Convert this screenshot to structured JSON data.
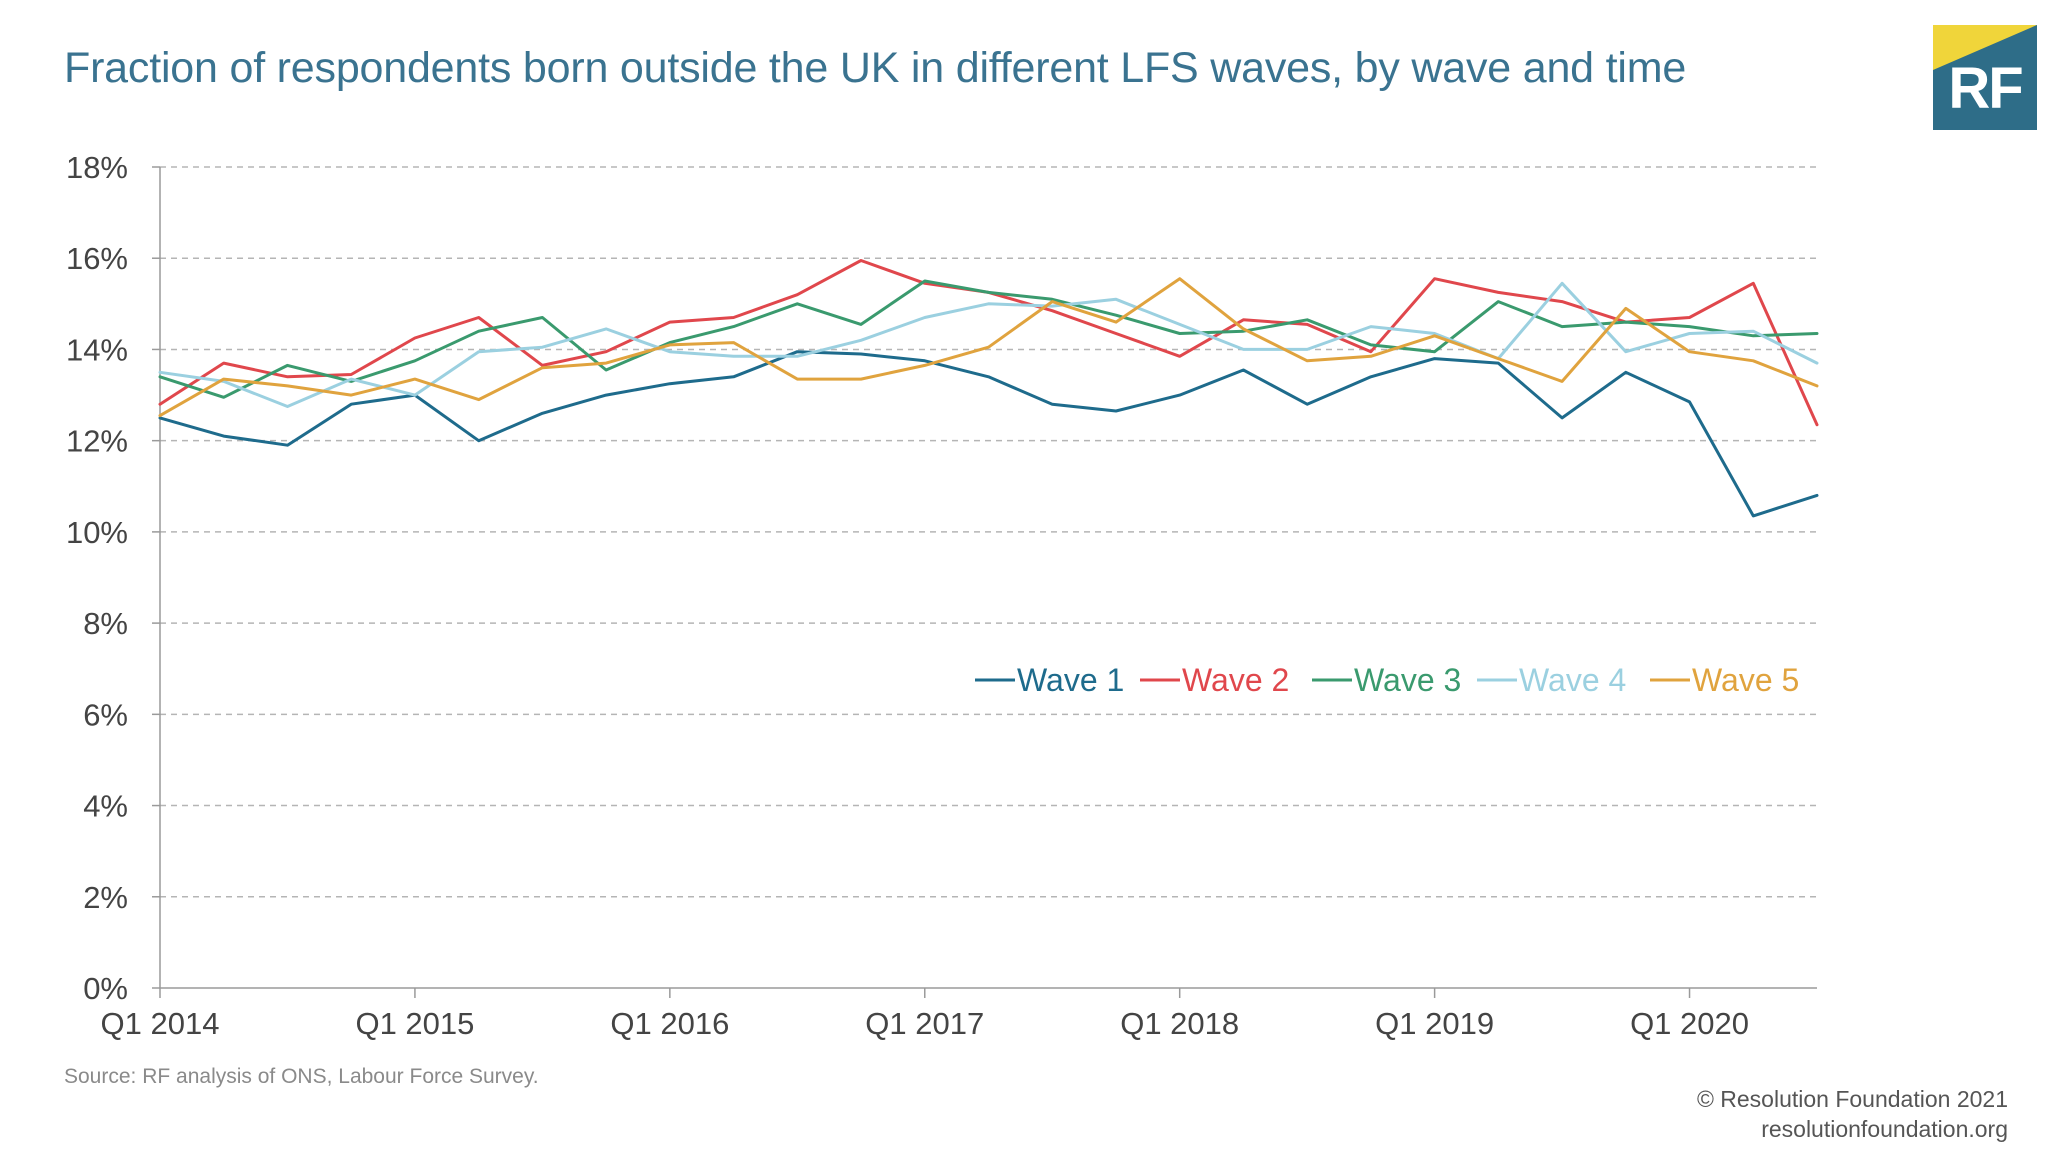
{
  "header": {
    "title": "Fraction of respondents born outside the UK in different LFS waves, by wave and time",
    "logo_text": "RF"
  },
  "footer": {
    "source": "Source: RF analysis of ONS, Labour Force Survey.",
    "copyright": "© Resolution Foundation 2021",
    "website": "resolutionfoundation.org"
  },
  "colors": {
    "title": "#3a7390",
    "logo_bg": "#2e6d88",
    "logo_accent": "#f0d53a",
    "grid": "#b5b5b5",
    "axis": "#9a9a9a"
  },
  "chart_data": {
    "type": "line",
    "title": "Fraction of respondents born outside the UK in different LFS waves, by wave and time",
    "xlabel": "",
    "ylabel": "",
    "ylim": [
      0,
      18
    ],
    "yticks": [
      "0%",
      "2%",
      "4%",
      "6%",
      "8%",
      "10%",
      "12%",
      "14%",
      "16%",
      "18%"
    ],
    "ytick_values": [
      0,
      2,
      4,
      6,
      8,
      10,
      12,
      14,
      16,
      18
    ],
    "grid": true,
    "legend_position": "center-right",
    "xtick_labels": [
      "Q1 2014",
      "Q1 2015",
      "Q1 2016",
      "Q1 2017",
      "Q1 2018",
      "Q1 2019",
      "Q1 2020"
    ],
    "xtick_index": [
      0,
      4,
      8,
      12,
      16,
      20,
      24
    ],
    "x": [
      "Q1 2014",
      "Q2 2014",
      "Q3 2014",
      "Q4 2014",
      "Q1 2015",
      "Q2 2015",
      "Q3 2015",
      "Q4 2015",
      "Q1 2016",
      "Q2 2016",
      "Q3 2016",
      "Q4 2016",
      "Q1 2017",
      "Q2 2017",
      "Q3 2017",
      "Q4 2017",
      "Q1 2018",
      "Q2 2018",
      "Q3 2018",
      "Q4 2018",
      "Q1 2019",
      "Q2 2019",
      "Q3 2019",
      "Q4 2019",
      "Q1 2020",
      "Q2 2020",
      "Q3 2020"
    ],
    "series": [
      {
        "name": "Wave 1",
        "color": "#1e6b8c",
        "values": [
          12.5,
          12.1,
          11.9,
          12.8,
          13.0,
          12.0,
          12.6,
          13.0,
          13.25,
          13.4,
          13.95,
          13.9,
          13.75,
          13.4,
          12.8,
          12.65,
          13.0,
          13.55,
          12.8,
          13.4,
          13.8,
          13.7,
          12.5,
          13.5,
          12.85,
          10.35,
          10.8
        ]
      },
      {
        "name": "Wave 2",
        "color": "#e0474c",
        "values": [
          12.8,
          13.7,
          13.4,
          13.45,
          14.25,
          14.7,
          13.65,
          13.95,
          14.6,
          14.7,
          15.2,
          15.95,
          15.45,
          15.25,
          14.85,
          14.35,
          13.85,
          14.65,
          14.55,
          13.95,
          15.55,
          15.25,
          15.05,
          14.6,
          14.7,
          15.45,
          12.35
        ]
      },
      {
        "name": "Wave 3",
        "color": "#3a9a6e",
        "values": [
          13.4,
          12.95,
          13.65,
          13.3,
          13.75,
          14.4,
          14.7,
          13.55,
          14.15,
          14.5,
          15.0,
          14.55,
          15.5,
          15.25,
          15.1,
          14.75,
          14.35,
          14.4,
          14.65,
          14.1,
          13.95,
          15.05,
          14.5,
          14.6,
          14.5,
          14.3,
          14.35
        ]
      },
      {
        "name": "Wave 4",
        "color": "#9bd0e0",
        "values": [
          13.5,
          13.3,
          12.75,
          13.35,
          13.0,
          13.95,
          14.05,
          14.45,
          13.95,
          13.85,
          13.85,
          14.2,
          14.7,
          15.0,
          14.95,
          15.1,
          14.55,
          14.0,
          14.0,
          14.5,
          14.35,
          13.8,
          15.45,
          13.95,
          14.35,
          14.4,
          13.7
        ]
      },
      {
        "name": "Wave 5",
        "color": "#e0a33e",
        "values": [
          12.55,
          13.35,
          13.2,
          13.0,
          13.35,
          12.9,
          13.6,
          13.7,
          14.1,
          14.15,
          13.35,
          13.35,
          13.65,
          14.05,
          15.05,
          14.6,
          15.55,
          14.45,
          13.75,
          13.85,
          14.3,
          13.8,
          13.3,
          14.9,
          13.95,
          13.75,
          13.2
        ]
      }
    ]
  }
}
